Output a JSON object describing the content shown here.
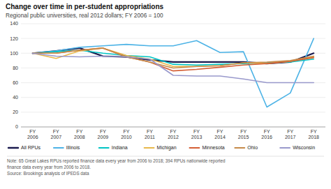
{
  "chart_data": {
    "type": "line",
    "title": "Change over time in per-student appropriations",
    "subtitle": "Regional public universities, real 2012 dollars; FY 2006 = 100",
    "note": "Note: 65 Great Lakes RPUs reported finance data every year from 2006 to 2018; 394 RPUs nationwide reported\nfinance data every year from 2006 to 2018.\nSource: Brookings analysis of IPEDS data",
    "categories": [
      "FY\n2006",
      "FY\n2007",
      "FY\n2008",
      "FY\n2009",
      "FY\n2010",
      "FY\n2011",
      "FY\n2012",
      "FY\n2013",
      "FY\n2014",
      "FY\n2015",
      "FY\n2016",
      "FY\n2017",
      "FY\n2018"
    ],
    "series": [
      {
        "name": "All RPUs",
        "color": "#1a1a4e",
        "values": [
          100,
          103,
          107,
          96,
          95,
          91,
          88,
          88,
          88,
          88,
          86,
          88,
          100
        ]
      },
      {
        "name": "Illinois",
        "color": "#4db3e6",
        "values": [
          100,
          103,
          108,
          110,
          112,
          110,
          110,
          117,
          101,
          102,
          27,
          46,
          120
        ]
      },
      {
        "name": "Indiana",
        "color": "#00c4c4",
        "values": [
          100,
          102,
          104,
          100,
          97,
          95,
          85,
          84,
          85,
          86,
          87,
          88,
          92
        ]
      },
      {
        "name": "Michigan",
        "color": "#e8b84b",
        "values": [
          100,
          93,
          103,
          107,
          97,
          92,
          82,
          82,
          83,
          87,
          86,
          89,
          95
        ]
      },
      {
        "name": "Minnesota",
        "color": "#d45f35",
        "values": [
          100,
          100,
          104,
          107,
          95,
          88,
          76,
          78,
          81,
          84,
          86,
          89,
          94
        ]
      },
      {
        "name": "Ohio",
        "color": "#c68b4a",
        "values": [
          100,
          100,
          104,
          107,
          95,
          88,
          80,
          82,
          83,
          87,
          88,
          90,
          96
        ]
      },
      {
        "name": "Wisconsin",
        "color": "#9999cc",
        "values": [
          100,
          96,
          95,
          96,
          95,
          92,
          70,
          69,
          69,
          65,
          60,
          60,
          60
        ]
      }
    ],
    "ylim": [
      0,
      140
    ],
    "yticks": [
      0,
      20,
      40,
      60,
      80,
      100,
      120,
      140
    ],
    "grid": true,
    "legend": "bottom"
  }
}
